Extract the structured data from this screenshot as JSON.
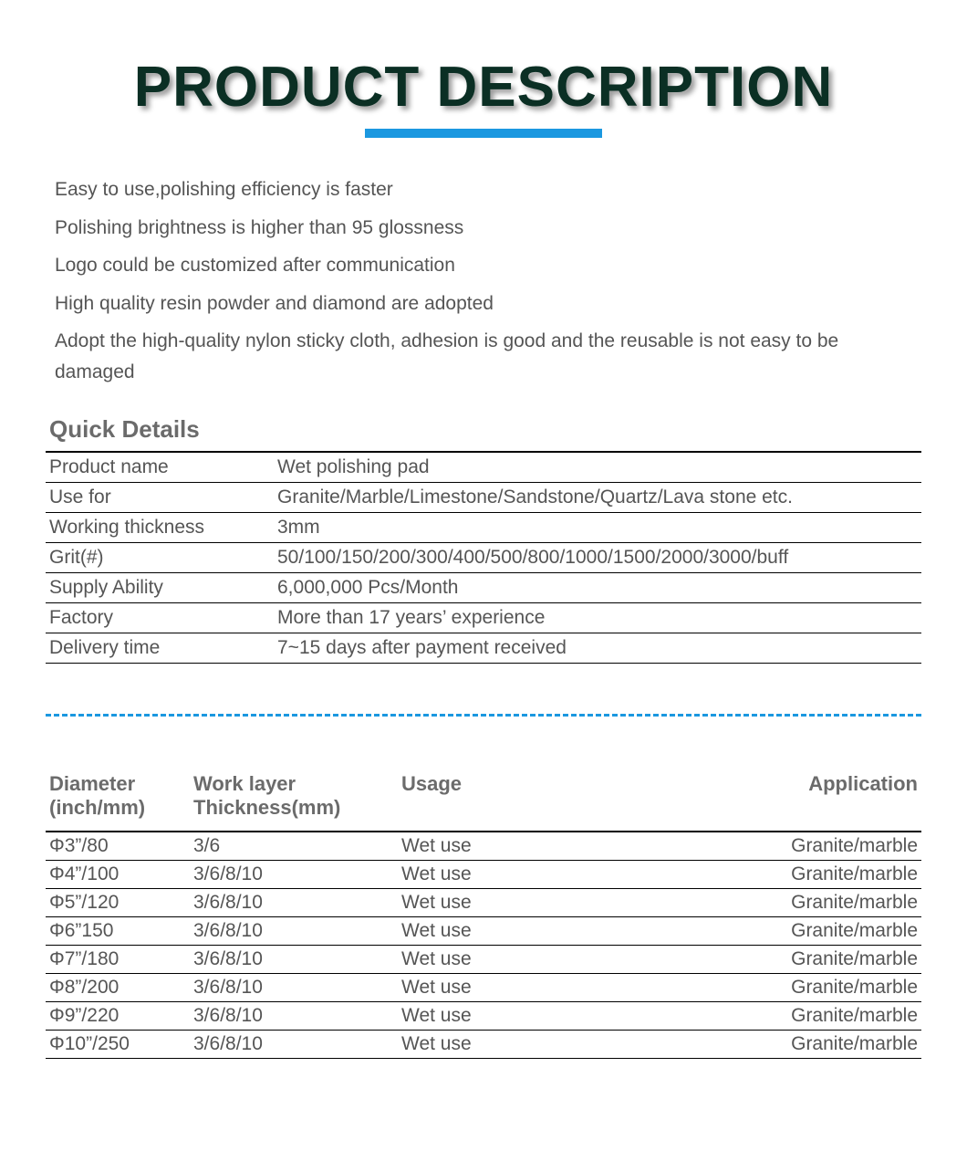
{
  "title": "PRODUCT DESCRIPTION",
  "title_color": "#0b2f24",
  "underline_color": "#1b98e0",
  "bullets": [
    "Easy to use,polishing efficiency is faster",
    "Polishing brightness is higher than 95 glossness",
    "Logo could be customized after communication",
    "High quality resin powder and diamond are adopted",
    "Adopt the high-quality nylon sticky cloth, adhesion is good and the reusable is not easy to be damaged"
  ],
  "quick_details_heading": "Quick Details",
  "quick_details": [
    {
      "label": "Product name",
      "value": "Wet polishing pad"
    },
    {
      "label": "Use for",
      "value": "Granite/Marble/Limestone/Sandstone/Quartz/Lava stone etc."
    },
    {
      "label": "Working thickness",
      "value": "3mm"
    },
    {
      "label": "Grit(#)",
      "value": "50/100/150/200/300/400/500/800/1000/1500/2000/3000/buff"
    },
    {
      "label": "Supply Ability",
      "value": "6,000,000 Pcs/Month"
    },
    {
      "label": "Factory",
      "value": "More than 17 years’ experience"
    },
    {
      "label": "Delivery time",
      "value": "7~15 days after payment received"
    }
  ],
  "spec_headers": {
    "diameter": "Diameter (inch/mm)",
    "thickness": "Work layer Thickness(mm)",
    "usage": "Usage",
    "application": "Application"
  },
  "specs": [
    {
      "diameter": "Φ3”/80",
      "thickness": "3/6",
      "usage": "Wet use",
      "application": "Granite/marble"
    },
    {
      "diameter": "Φ4”/100",
      "thickness": "3/6/8/10",
      "usage": "Wet use",
      "application": "Granite/marble"
    },
    {
      "diameter": "Φ5”/120",
      "thickness": "3/6/8/10",
      "usage": "Wet use",
      "application": "Granite/marble"
    },
    {
      "diameter": "Φ6”150",
      "thickness": "3/6/8/10",
      "usage": "Wet use",
      "application": "Granite/marble"
    },
    {
      "diameter": "Φ7”/180",
      "thickness": "3/6/8/10",
      "usage": "Wet use",
      "application": "Granite/marble"
    },
    {
      "diameter": "Φ8”/200",
      "thickness": "3/6/8/10",
      "usage": "Wet use",
      "application": "Granite/marble"
    },
    {
      "diameter": "Φ9”/220",
      "thickness": "3/6/8/10",
      "usage": "Wet use",
      "application": "Granite/marble"
    },
    {
      "diameter": "Φ10”/250",
      "thickness": "3/6/8/10",
      "usage": "Wet use",
      "application": "Granite/marble"
    }
  ],
  "divider_color": "#1b98e0"
}
